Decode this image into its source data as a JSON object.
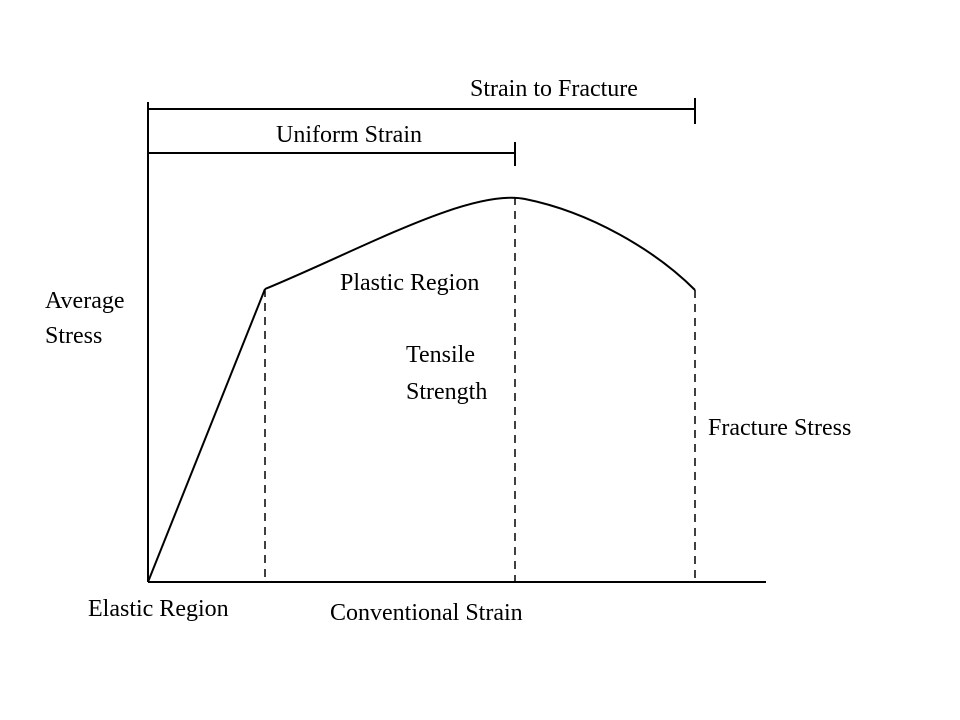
{
  "labels": {
    "strain_to_fracture": "Strain to Fracture",
    "uniform_strain": "Uniform Strain",
    "plastic_region": "Plastic Region",
    "average_stress_line1": "Average",
    "average_stress_line2": "Stress",
    "tensile_strength_line1": "Tensile",
    "tensile_strength_line2": "Strength",
    "fracture_stress": "Fracture Stress",
    "elastic_region": "Elastic Region",
    "conventional_strain": "Conventional Strain"
  }
}
